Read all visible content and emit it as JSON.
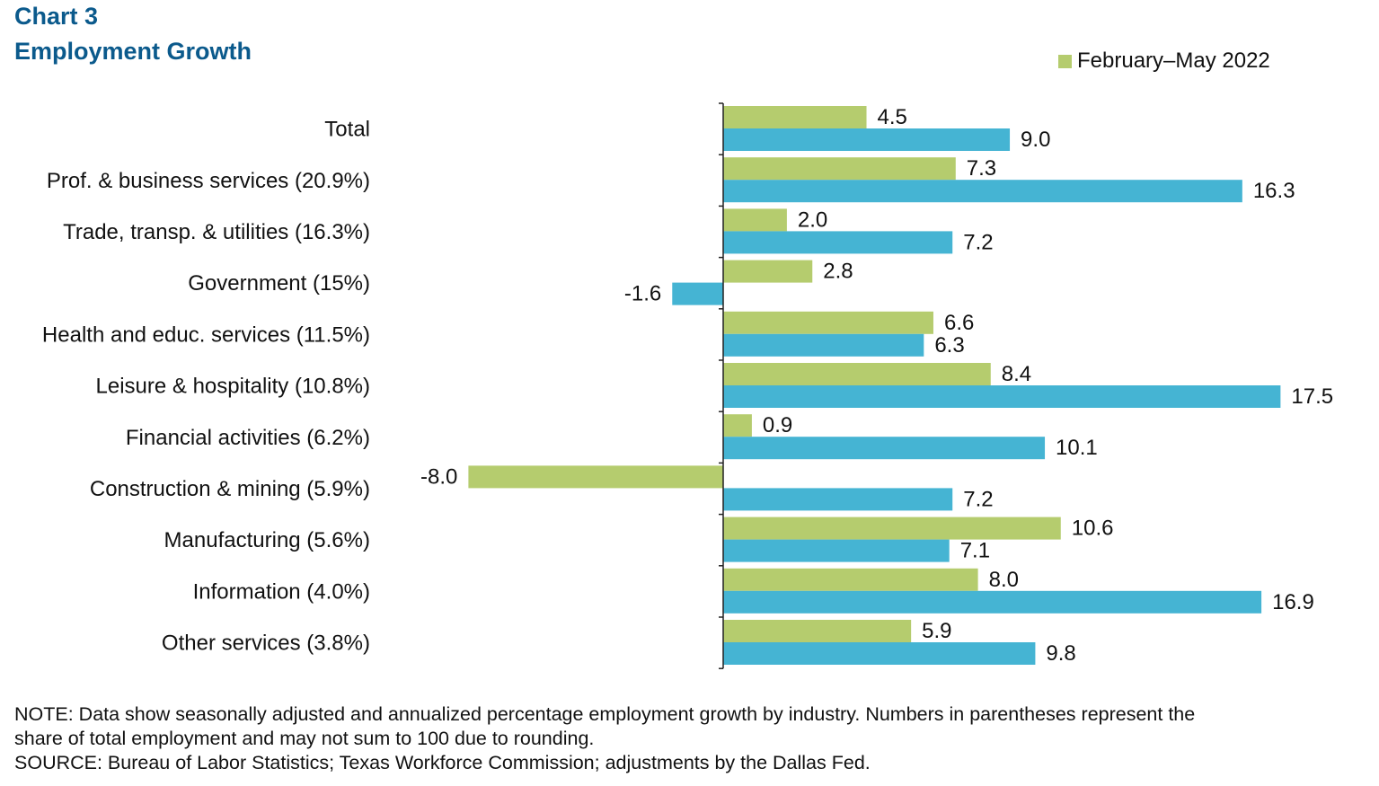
{
  "header": {
    "chart_number": "Chart 3",
    "title": "Employment  Growth"
  },
  "legend": {
    "series_label": "February–May  2022"
  },
  "colors": {
    "series_green": "#b5cc6e",
    "series_blue": "#45b4d3",
    "title": "#0b5a8c"
  },
  "notes": {
    "note_line1": "NOTE: Data show seasonally adjusted and annualized percentage employment growth by industry. Numbers in parentheses represent the",
    "note_line2": "share of total employment and may not sum to 100 due to rounding.",
    "source": "SOURCE: Bureau of Labor Statistics; Texas  Workforce Commission; adjustments by the Dallas Fed."
  },
  "chart_data": {
    "type": "bar",
    "orientation": "horizontal",
    "categories": [
      "Total",
      "Prof. & business services (20.9%)",
      "Trade, transp. & utilities (16.3%)",
      "Government (15%)",
      "Health and educ. services (11.5%)",
      "Leisure & hospitality (10.8%)",
      "Financial activities (6.2%)",
      "Construction & mining (5.9%)",
      "Manufacturing (5.6%)",
      "Information (4.0%)",
      "Other services (3.8%)"
    ],
    "series": [
      {
        "name": "February–May  2022",
        "color": "#b5cc6e",
        "values": [
          4.5,
          7.3,
          2.0,
          2.8,
          6.6,
          8.4,
          0.9,
          -8.0,
          10.6,
          8.0,
          5.9
        ],
        "labels": [
          "4.5",
          "7.3",
          "2.0",
          "2.8",
          "6.6",
          "8.4",
          "0.9",
          "-8.0",
          "10.6",
          "8.0",
          "5.9"
        ]
      },
      {
        "color": "#45b4d3",
        "values": [
          9.0,
          16.3,
          7.2,
          -1.6,
          6.3,
          17.5,
          10.1,
          7.2,
          7.1,
          16.9,
          9.8
        ],
        "labels": [
          "9.0",
          "16.3",
          "7.2",
          "-1.6",
          "6.3",
          "17.5",
          "10.1",
          "7.2",
          "7.1",
          "16.9",
          "9.8"
        ]
      }
    ],
    "xlim": [
      -8.5,
      19.5
    ],
    "grid": false,
    "legend_position": "top-right"
  }
}
